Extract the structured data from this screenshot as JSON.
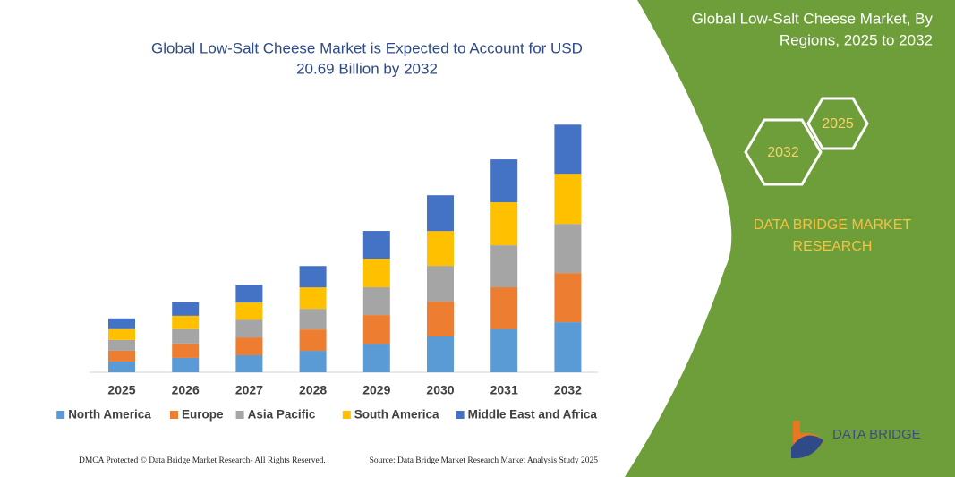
{
  "chart_data": {
    "type": "stacked-bar",
    "title": [
      "Global Low-Salt Cheese Market is Expected to Account for USD",
      "20.69 Billion by 2032"
    ],
    "categories": [
      "2025",
      "2026",
      "2027",
      "2028",
      "2029",
      "2030",
      "2031",
      "2032"
    ],
    "series": [
      {
        "name": "North America",
        "color": "#5b9bd5",
        "values": [
          0.9,
          1.2,
          1.42,
          1.79,
          2.39,
          2.99,
          3.59,
          4.18
        ]
      },
      {
        "name": "Europe",
        "color": "#ed7d31",
        "values": [
          0.9,
          1.2,
          1.49,
          1.79,
          2.39,
          2.91,
          3.51,
          4.11
        ]
      },
      {
        "name": "Asia Pacific",
        "color": "#a5a5a5",
        "values": [
          0.9,
          1.2,
          1.49,
          1.72,
          2.32,
          2.99,
          3.51,
          4.11
        ]
      },
      {
        "name": "South America",
        "color": "#ffc000",
        "values": [
          0.9,
          1.12,
          1.42,
          1.79,
          2.39,
          2.91,
          3.59,
          4.18
        ]
      },
      {
        "name": "Middle East and Africa",
        "color": "#4472c4",
        "values": [
          0.9,
          1.12,
          1.49,
          1.79,
          2.32,
          2.99,
          3.59,
          4.11
        ]
      }
    ],
    "ylim": [
      0,
      24
    ]
  },
  "panel": {
    "title": [
      "Global Low-Salt Cheese Market, By",
      "Regions, 2025 to 2032"
    ],
    "hexagons": [
      "2032",
      "2025"
    ],
    "brand": [
      "DATA BRIDGE MARKET",
      "RESEARCH"
    ],
    "logo": "DATA BRIDGE"
  },
  "footer": {
    "left": "DMCA Protected © Data Bridge Market Research-  All Rights Reserved.",
    "right": "Source: Data Bridge Market Research  Market Analysis Study 2025"
  }
}
